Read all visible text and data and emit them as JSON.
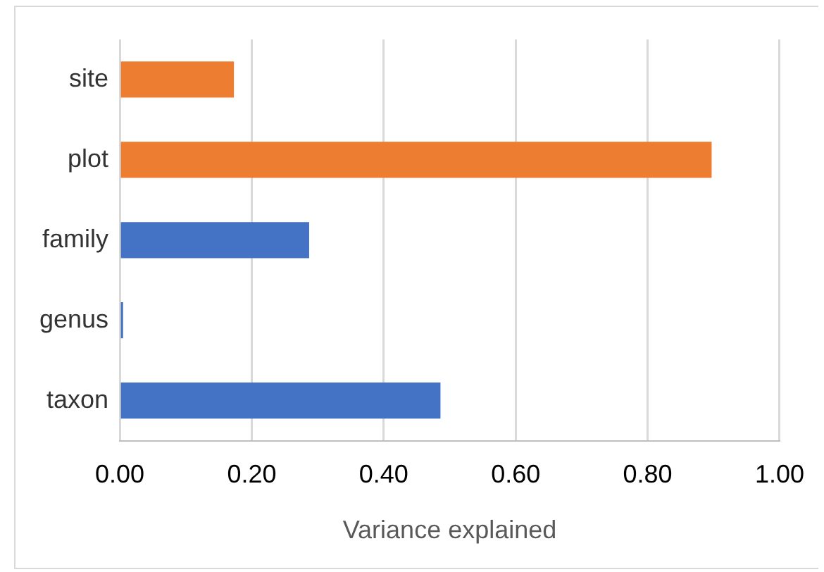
{
  "chart_data": {
    "type": "bar",
    "orientation": "horizontal",
    "xlabel": "Variance explained",
    "categories": [
      "site",
      "plot",
      "family",
      "genus",
      "taxon"
    ],
    "values": [
      0.173,
      0.897,
      0.287,
      0.005,
      0.486
    ],
    "colors": [
      "#ed7d31",
      "#ed7d31",
      "#4472c4",
      "#4472c4",
      "#4472c4"
    ],
    "xlim": [
      0,
      1
    ],
    "xticks": [
      {
        "value": 0,
        "label": "0.00"
      },
      {
        "value": 0.2,
        "label": "0.20"
      },
      {
        "value": 0.4,
        "label": "0.40"
      },
      {
        "value": 0.6,
        "label": "0.60"
      },
      {
        "value": 0.8,
        "label": "0.80"
      },
      {
        "value": 1,
        "label": "1.00"
      }
    ],
    "grid": "x",
    "legend": false
  }
}
